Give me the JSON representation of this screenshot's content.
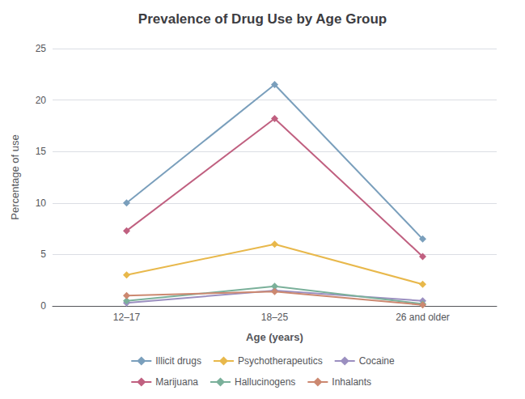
{
  "chart_data": {
    "type": "line",
    "title": "Prevalence of Drug Use by Age Group",
    "xlabel": "Age (years)",
    "ylabel": "Percentage of use",
    "categories": [
      "12–17",
      "18–25",
      "26 and older"
    ],
    "series": [
      {
        "name": "Illicit drugs",
        "color": "#7a9fbc",
        "marker": "diamond",
        "values": [
          10,
          21.5,
          6.5
        ]
      },
      {
        "name": "Psychotherapeutics",
        "color": "#e8b84b",
        "marker": "diamond",
        "values": [
          3.0,
          6.0,
          2.1
        ]
      },
      {
        "name": "Cocaine",
        "color": "#9b8fc0",
        "marker": "diamond",
        "values": [
          0.3,
          1.5,
          0.5
        ]
      },
      {
        "name": "Marijuana",
        "color": "#c06080",
        "marker": "diamond",
        "values": [
          7.3,
          18.2,
          4.8
        ]
      },
      {
        "name": "Hallucinogens",
        "color": "#7ab09a",
        "marker": "diamond",
        "values": [
          0.5,
          1.9,
          0.2
        ]
      },
      {
        "name": "Inhalants",
        "color": "#cc8870",
        "marker": "diamond",
        "values": [
          1.0,
          1.4,
          0.1
        ]
      }
    ],
    "ylim": [
      0,
      25
    ],
    "yticks": [
      0,
      5,
      10,
      15,
      20,
      25
    ],
    "grid": true,
    "legend": "bottom"
  }
}
